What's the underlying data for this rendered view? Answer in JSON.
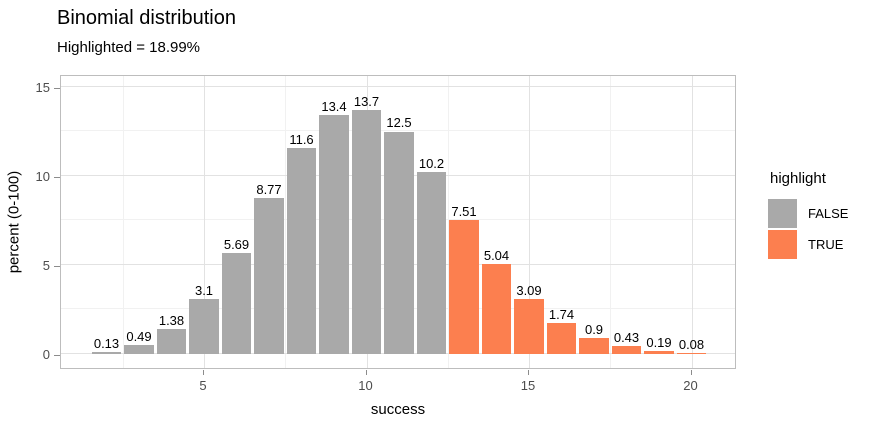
{
  "header": {
    "title": "Binomial distribution",
    "subtitle": "Highlighted = 18.99%"
  },
  "legend": {
    "title": "highlight",
    "items": [
      {
        "label": "FALSE",
        "color": "#a9a9a9"
      },
      {
        "label": "TRUE",
        "color": "#fc7f4f"
      }
    ]
  },
  "chart_data": {
    "type": "bar",
    "title": "Binomial distribution",
    "subtitle": "Highlighted = 18.99%",
    "xlabel": "success",
    "ylabel": "percent (0-100)",
    "x": [
      2,
      3,
      4,
      5,
      6,
      7,
      8,
      9,
      10,
      11,
      12,
      13,
      14,
      15,
      16,
      17,
      18,
      19,
      20
    ],
    "values": [
      0.13,
      0.49,
      1.38,
      3.1,
      5.69,
      8.77,
      11.6,
      13.4,
      13.7,
      12.5,
      10.2,
      7.51,
      5.04,
      3.09,
      1.74,
      0.9,
      0.43,
      0.19,
      0.08
    ],
    "bar_labels": [
      "0.13",
      "0.49",
      "1.38",
      "3.1",
      "5.69",
      "8.77",
      "11.6",
      "13.4",
      "13.7",
      "12.5",
      "10.2",
      "7.51",
      "5.04",
      "3.09",
      "1.74",
      "0.9",
      "0.43",
      "0.19",
      "0.08"
    ],
    "highlight": [
      false,
      false,
      false,
      false,
      false,
      false,
      false,
      false,
      false,
      false,
      false,
      true,
      true,
      true,
      true,
      true,
      true,
      true,
      true
    ],
    "series_colors": {
      "FALSE": "#a9a9a9",
      "TRUE": "#fc7f4f"
    },
    "highlighted_total_percent": "18.99%",
    "x_ticks": [
      5,
      10,
      15,
      20
    ],
    "y_ticks": [
      0,
      5,
      10,
      15
    ],
    "x_minor_gridlines": [
      2.5,
      7.5,
      12.5,
      17.5
    ],
    "y_minor_gridlines": [
      2.5,
      7.5,
      12.5
    ],
    "x_range": [
      0.6,
      21.4
    ],
    "y_range": [
      -0.79,
      15.73
    ],
    "bar_width": 0.9,
    "grid": true,
    "legend_position": "right"
  }
}
